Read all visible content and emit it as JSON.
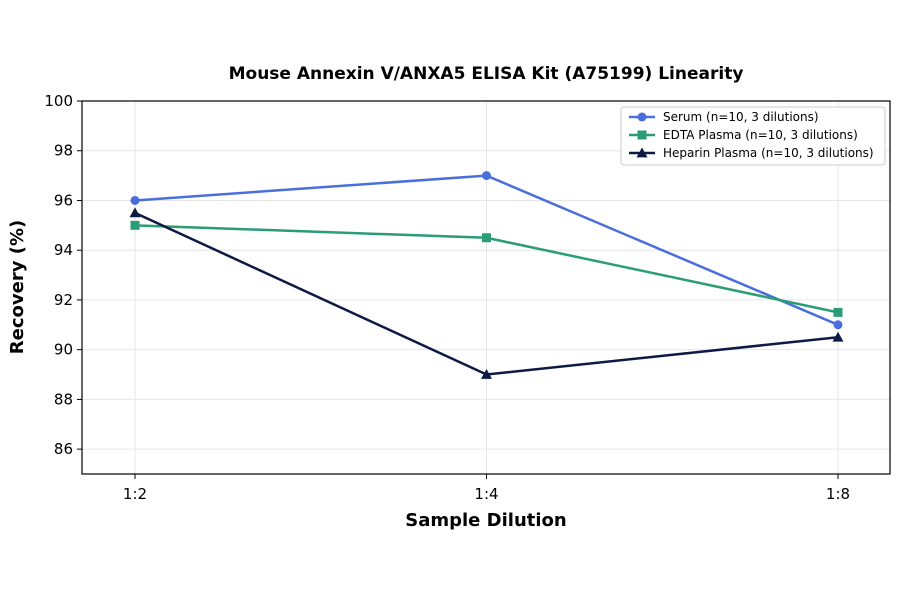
{
  "chart_data": {
    "type": "line",
    "title": "Mouse Annexin V/ANXA5 ELISA Kit (A75199) Linearity",
    "xlabel": "Sample Dilution",
    "ylabel": "Recovery (%)",
    "categories": [
      "1:2",
      "1:4",
      "1:8"
    ],
    "ylim": [
      85,
      100
    ],
    "yticks": [
      86,
      88,
      90,
      92,
      94,
      96,
      98,
      100
    ],
    "grid": true,
    "legend_position": "top-right",
    "series": [
      {
        "name": "Serum (n=10, 3 dilutions)",
        "values": [
          96,
          97,
          91
        ],
        "color": "#4a6fdc",
        "marker": "circle"
      },
      {
        "name": "EDTA Plasma (n=10, 3 dilutions)",
        "values": [
          95,
          94.5,
          91.5
        ],
        "color": "#2a9d75",
        "marker": "square"
      },
      {
        "name": "Heparin Plasma (n=10, 3 dilutions)",
        "values": [
          95.5,
          89,
          90.5
        ],
        "color": "#0d1a45",
        "marker": "triangle"
      }
    ]
  }
}
